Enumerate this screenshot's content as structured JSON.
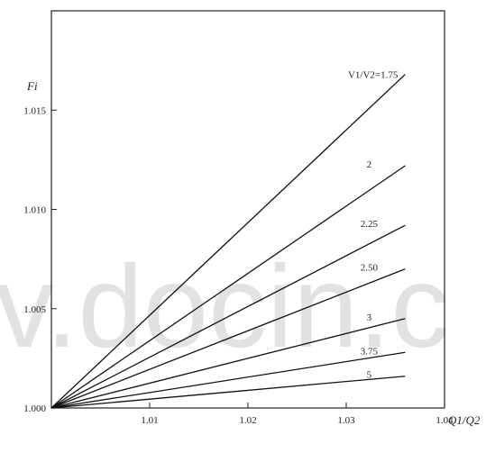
{
  "watermark": "v.docin.c",
  "chart_data": {
    "type": "line",
    "title": "",
    "xlabel": "Q1/Q2",
    "ylabel": "Fi",
    "xlim": [
      1.0,
      1.04
    ],
    "ylim": [
      1.0,
      1.02
    ],
    "x_ticks": [
      1.01,
      1.02,
      1.03,
      1.04
    ],
    "y_ticks": [
      1.0,
      1.005,
      1.01,
      1.015
    ],
    "x_tick_labels": [
      "1.01",
      "1.02",
      "1.03",
      "1.04"
    ],
    "y_tick_labels": [
      "1.000",
      "1.005",
      "1.010",
      "1.015"
    ],
    "grid": false,
    "legend": "none",
    "series": [
      {
        "name": "V1/V2=1.75",
        "x": [
          1.0,
          1.036
        ],
        "y": [
          1.0,
          1.0168
        ]
      },
      {
        "name": "2",
        "x": [
          1.0,
          1.036
        ],
        "y": [
          1.0,
          1.0122
        ]
      },
      {
        "name": "2.25",
        "x": [
          1.0,
          1.036
        ],
        "y": [
          1.0,
          1.0092
        ]
      },
      {
        "name": "2.50",
        "x": [
          1.0,
          1.036
        ],
        "y": [
          1.0,
          1.007
        ]
      },
      {
        "name": "3",
        "x": [
          1.0,
          1.036
        ],
        "y": [
          1.0,
          1.0045
        ]
      },
      {
        "name": "3.75",
        "x": [
          1.0,
          1.036
        ],
        "y": [
          1.0,
          1.0028
        ]
      },
      {
        "name": "5",
        "x": [
          1.0,
          1.036
        ],
        "y": [
          1.0,
          1.0016
        ]
      }
    ]
  }
}
